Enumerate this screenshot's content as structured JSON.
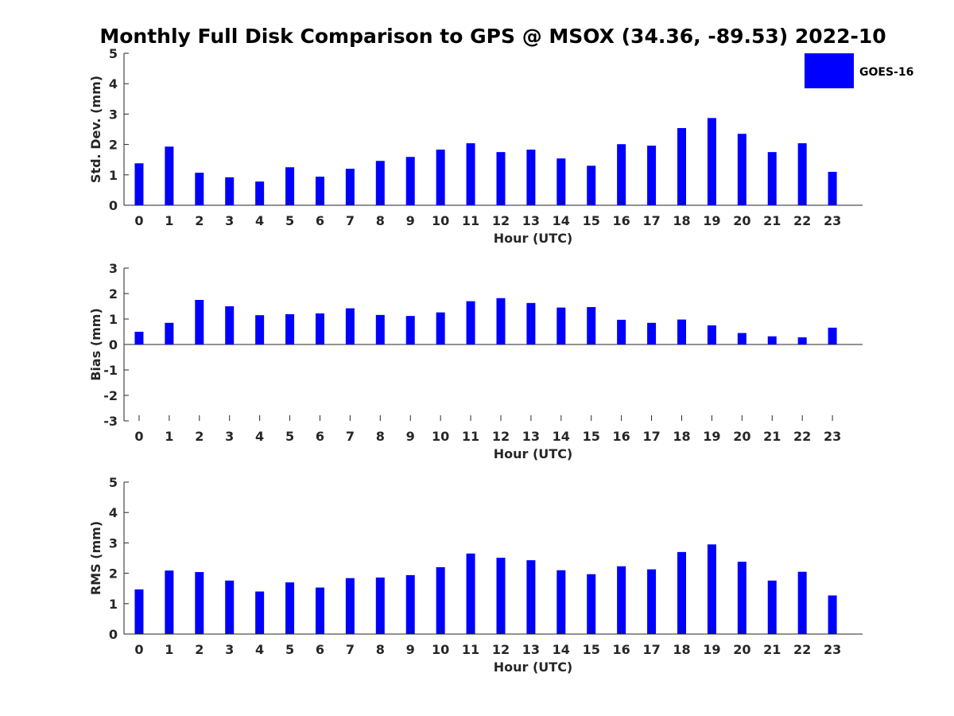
{
  "figure": {
    "title": "Monthly Full Disk Comparison to GPS @ MSOX (34.36, -89.53) 2022-10",
    "background": "#ffffff"
  },
  "legend": {
    "items": [
      {
        "label": "GOES-16",
        "color": "#0000ff"
      }
    ],
    "placement": "top-right"
  },
  "chart_data": [
    {
      "type": "bar",
      "series": [
        {
          "name": "GOES-16",
          "color": "#0000ff",
          "values": [
            1.38,
            1.93,
            1.07,
            0.92,
            0.78,
            1.25,
            0.94,
            1.2,
            1.46,
            1.59,
            1.83,
            2.04,
            1.75,
            1.83,
            1.54,
            1.3,
            2.01,
            1.96,
            2.54,
            2.87,
            2.35,
            1.75,
            2.04,
            1.1
          ]
        }
      ],
      "categories": [
        "0",
        "1",
        "2",
        "3",
        "4",
        "5",
        "6",
        "7",
        "8",
        "9",
        "10",
        "11",
        "12",
        "13",
        "14",
        "15",
        "16",
        "17",
        "18",
        "19",
        "20",
        "21",
        "22",
        "23"
      ],
      "xlabel": "Hour (UTC)",
      "ylabel": "Std. Dev. (mm)",
      "ylim": [
        0,
        5
      ],
      "yticks": [
        "0",
        "1",
        "2",
        "3",
        "4",
        "5"
      ],
      "grid": false
    },
    {
      "type": "bar",
      "series": [
        {
          "name": "GOES-16",
          "color": "#0000ff",
          "values": [
            0.5,
            0.85,
            1.75,
            1.5,
            1.15,
            1.19,
            1.22,
            1.42,
            1.16,
            1.12,
            1.26,
            1.7,
            1.82,
            1.63,
            1.45,
            1.47,
            0.97,
            0.85,
            0.98,
            0.75,
            0.45,
            0.32,
            0.28,
            0.66
          ]
        }
      ],
      "categories": [
        "0",
        "1",
        "2",
        "3",
        "4",
        "5",
        "6",
        "7",
        "8",
        "9",
        "10",
        "11",
        "12",
        "13",
        "14",
        "15",
        "16",
        "17",
        "18",
        "19",
        "20",
        "21",
        "22",
        "23"
      ],
      "xlabel": "Hour (UTC)",
      "ylabel": "Bias (mm)",
      "ylim": [
        -3,
        3
      ],
      "yticks": [
        "-3",
        "-2",
        "-1",
        "0",
        "1",
        "2",
        "3"
      ],
      "grid": false
    },
    {
      "type": "bar",
      "series": [
        {
          "name": "GOES-16",
          "color": "#0000ff",
          "values": [
            1.47,
            2.09,
            2.04,
            1.76,
            1.4,
            1.7,
            1.53,
            1.84,
            1.86,
            1.94,
            2.2,
            2.65,
            2.51,
            2.43,
            2.1,
            1.97,
            2.23,
            2.13,
            2.7,
            2.95,
            2.38,
            1.76,
            2.05,
            1.27
          ]
        }
      ],
      "categories": [
        "0",
        "1",
        "2",
        "3",
        "4",
        "5",
        "6",
        "7",
        "8",
        "9",
        "10",
        "11",
        "12",
        "13",
        "14",
        "15",
        "16",
        "17",
        "18",
        "19",
        "20",
        "21",
        "22",
        "23"
      ],
      "xlabel": "Hour (UTC)",
      "ylabel": "RMS (mm)",
      "ylim": [
        0,
        5
      ],
      "yticks": [
        "0",
        "1",
        "2",
        "3",
        "4",
        "5"
      ],
      "grid": false
    }
  ]
}
